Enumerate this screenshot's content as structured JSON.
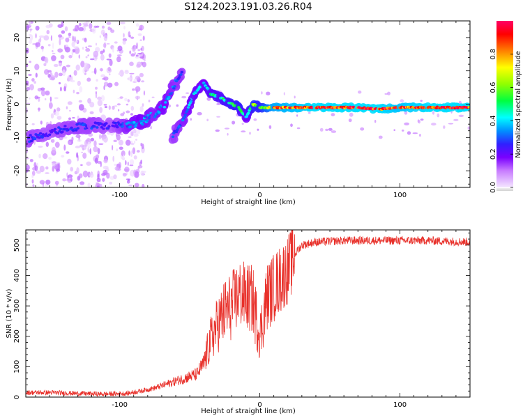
{
  "title": "S124.2023.191.03.26.R04",
  "chart_data": [
    {
      "type": "heatmap",
      "xlabel": "Height of straight line (km)",
      "ylabel": "Frequency (Hz)",
      "xlim": [
        -167,
        150
      ],
      "ylim": [
        -25,
        25
      ],
      "xticks": [
        -100,
        0,
        100
      ],
      "yticks": [
        20,
        10,
        0,
        -10,
        -20
      ],
      "colorbar": {
        "label": "Normalized spectral amplitude",
        "range": [
          0.0,
          1.0
        ],
        "ticks": [
          0.0,
          0.2,
          0.4,
          0.6,
          0.8
        ],
        "colormap": [
          "#f4e6ff",
          "#c87cff",
          "#7a00ff",
          "#3020ff",
          "#0090ff",
          "#00ffff",
          "#00ff40",
          "#90ff00",
          "#ffff00",
          "#ff8000",
          "#ff0000",
          "#ff0066"
        ]
      },
      "ridge": {
        "description_points": [
          {
            "x": -165,
            "y": -10.5,
            "amp": 0.3
          },
          {
            "x": -150,
            "y": -8.5,
            "amp": 0.25
          },
          {
            "x": -135,
            "y": -7,
            "amp": 0.3
          },
          {
            "x": -120,
            "y": -6.5,
            "amp": 0.3
          },
          {
            "x": -105,
            "y": -6.5,
            "amp": 0.25
          },
          {
            "x": -95,
            "y": -6.5,
            "amp": 0.35
          },
          {
            "x": -85,
            "y": -5.5,
            "amp": 0.4
          },
          {
            "x": -75,
            "y": -3,
            "amp": 0.35
          },
          {
            "x": -68,
            "y": 0,
            "amp": 0.4
          },
          {
            "x": -62,
            "y": 5,
            "amp": 0.35
          },
          {
            "x": -55,
            "y": 10,
            "amp": 0.3
          },
          {
            "x": -62,
            "y": -10,
            "amp": 0.3
          },
          {
            "x": -55,
            "y": -5,
            "amp": 0.35
          },
          {
            "x": -47,
            "y": 3,
            "amp": 0.45
          },
          {
            "x": -40,
            "y": 6.5,
            "amp": 0.4
          },
          {
            "x": -35,
            "y": 3,
            "amp": 0.5
          },
          {
            "x": -28,
            "y": 2,
            "amp": 0.5
          },
          {
            "x": -22,
            "y": 0.5,
            "amp": 0.55
          },
          {
            "x": -15,
            "y": -1,
            "amp": 0.6
          },
          {
            "x": -10,
            "y": -4,
            "amp": 0.4
          },
          {
            "x": -5,
            "y": 0,
            "amp": 0.65
          },
          {
            "x": 0,
            "y": -1,
            "amp": 0.6
          },
          {
            "x": 10,
            "y": -1,
            "amp": 0.85
          },
          {
            "x": 40,
            "y": -1,
            "amp": 0.95
          },
          {
            "x": 70,
            "y": -1,
            "amp": 0.95
          },
          {
            "x": 85,
            "y": -1.5,
            "amp": 0.95
          },
          {
            "x": 100,
            "y": -1,
            "amp": 0.9
          },
          {
            "x": 120,
            "y": -1,
            "amp": 0.95
          },
          {
            "x": 150,
            "y": -1,
            "amp": 0.95
          }
        ]
      }
    },
    {
      "type": "line",
      "xlabel": "Height of straight line (km)",
      "ylabel": "SNR (10 * v/v)",
      "xlim": [
        -167,
        150
      ],
      "ylim": [
        0,
        550
      ],
      "xticks": [
        -100,
        0,
        100
      ],
      "yticks": [
        0,
        100,
        200,
        300,
        400,
        500
      ],
      "color": "#e8302a",
      "series": [
        {
          "x": [
            -167,
            -150,
            -130,
            -110,
            -95,
            -85,
            -75,
            -65,
            -55,
            -45,
            -40,
            -35,
            -30,
            -25,
            -20,
            -15,
            -10,
            -5,
            0,
            5,
            10,
            15,
            20,
            25,
            30,
            40,
            60,
            80,
            100,
            120,
            150
          ],
          "values": [
            15,
            15,
            12,
            10,
            12,
            20,
            30,
            45,
            60,
            75,
            110,
            190,
            240,
            280,
            300,
            340,
            330,
            320,
            200,
            330,
            360,
            390,
            420,
            470,
            500,
            510,
            515,
            515,
            515,
            515,
            510
          ]
        }
      ]
    }
  ]
}
